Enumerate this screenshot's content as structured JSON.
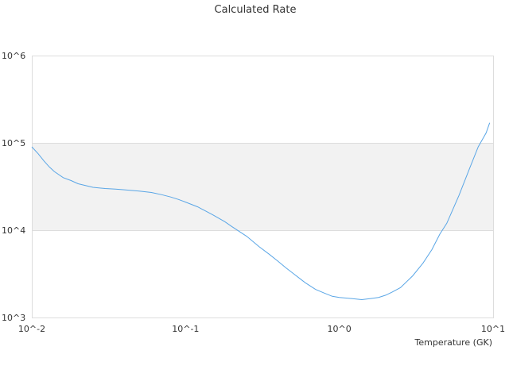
{
  "chart_data": {
    "type": "line",
    "title": "Calculated Rate",
    "xlabel": "Temperature (GK)",
    "ylabel": "",
    "x_scale": "log",
    "y_scale": "log",
    "xlim": [
      0.01,
      10
    ],
    "ylim": [
      1000,
      1000000
    ],
    "x_ticks": [
      "10^-2",
      "10^-1",
      "10^0",
      "10^1"
    ],
    "y_ticks": [
      "10^3",
      "10^4",
      "10^5",
      "10^6"
    ],
    "grid": true,
    "legend": "none",
    "colors": {
      "line": "#5aa6e6",
      "band": "#f2f2f2",
      "grid": "#dddddd"
    },
    "series": [
      {
        "x": [
          0.01,
          0.011,
          0.012,
          0.013,
          0.014,
          0.016,
          0.018,
          0.02,
          0.025,
          0.03,
          0.035,
          0.04,
          0.05,
          0.06,
          0.07,
          0.08,
          0.09,
          0.1,
          0.12,
          0.15,
          0.18,
          0.2,
          0.25,
          0.3,
          0.35,
          0.4,
          0.45,
          0.5,
          0.6,
          0.7,
          0.8,
          0.9,
          1.0,
          1.2,
          1.4,
          1.6,
          1.8,
          2.0,
          2.2,
          2.5,
          3.0,
          3.5,
          4.0,
          4.5,
          5.0,
          6.0,
          7.0,
          8.0,
          9.0,
          9.5
        ],
        "y": [
          90000,
          75000,
          62000,
          53000,
          47000,
          40000,
          37000,
          34000,
          31000,
          30000,
          29500,
          29000,
          28000,
          27000,
          25500,
          24000,
          22500,
          21000,
          18500,
          15000,
          12500,
          11000,
          8500,
          6500,
          5300,
          4400,
          3700,
          3200,
          2500,
          2100,
          1900,
          1750,
          1700,
          1650,
          1600,
          1650,
          1700,
          1800,
          1950,
          2200,
          3000,
          4200,
          6000,
          9000,
          12000,
          25000,
          50000,
          90000,
          130000,
          170000
        ]
      }
    ]
  }
}
